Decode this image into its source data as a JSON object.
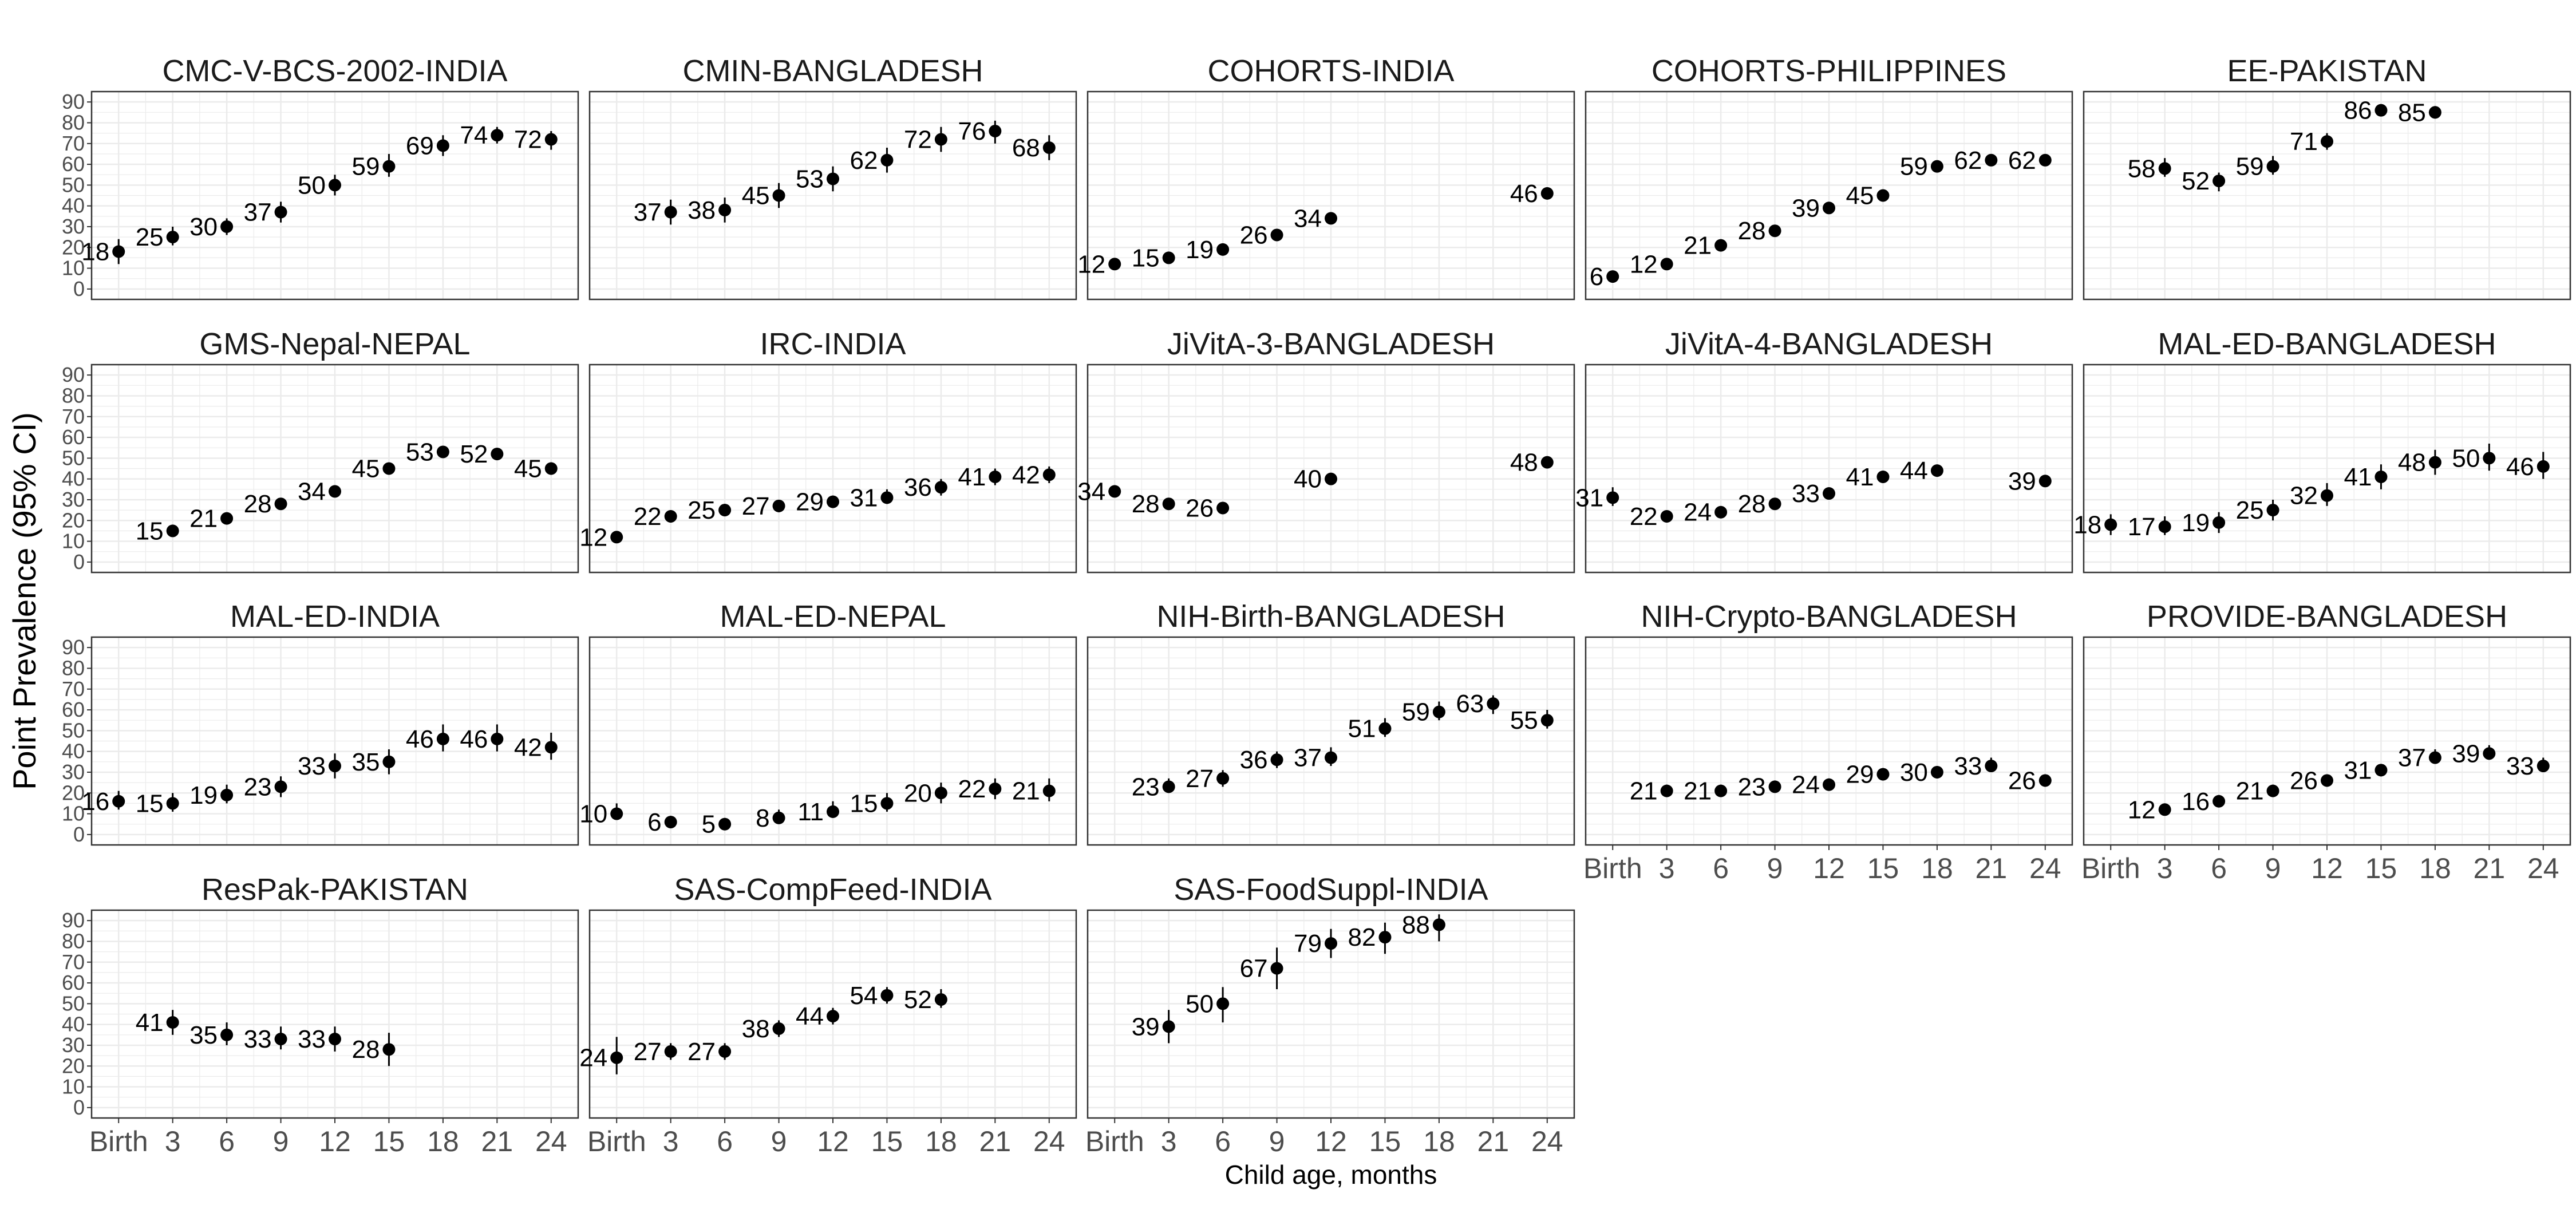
{
  "chart_data": {
    "type": "scatter",
    "xlabel": "Child age, months",
    "ylabel": "Point Prevalence (95% CI)",
    "ylim": [
      0,
      95
    ],
    "y_ticks": [
      0,
      10,
      20,
      30,
      40,
      50,
      60,
      70,
      80,
      90
    ],
    "x_ticks": [
      0,
      3,
      6,
      9,
      12,
      15,
      18,
      21,
      24
    ],
    "x_tick_labels": [
      "Birth",
      "3",
      "6",
      "9",
      "12",
      "15",
      "18",
      "21",
      "24"
    ],
    "grid": true,
    "panels": [
      {
        "title": "CMC-V-BCS-2002-INDIA",
        "points": [
          {
            "x": 0,
            "y": 18,
            "lo": 12,
            "hi": 24
          },
          {
            "x": 3,
            "y": 25,
            "lo": 21,
            "hi": 30
          },
          {
            "x": 6,
            "y": 30,
            "lo": 26,
            "hi": 34
          },
          {
            "x": 9,
            "y": 37,
            "lo": 32,
            "hi": 42
          },
          {
            "x": 12,
            "y": 50,
            "lo": 45,
            "hi": 55
          },
          {
            "x": 15,
            "y": 59,
            "lo": 54,
            "hi": 65
          },
          {
            "x": 18,
            "y": 69,
            "lo": 64,
            "hi": 74
          },
          {
            "x": 21,
            "y": 74,
            "lo": 70,
            "hi": 78
          },
          {
            "x": 24,
            "y": 72,
            "lo": 67,
            "hi": 76
          }
        ]
      },
      {
        "title": "CMIN-BANGLADESH",
        "points": [
          {
            "x": 3,
            "y": 37,
            "lo": 31,
            "hi": 43
          },
          {
            "x": 6,
            "y": 38,
            "lo": 32,
            "hi": 44
          },
          {
            "x": 9,
            "y": 45,
            "lo": 39,
            "hi": 51
          },
          {
            "x": 12,
            "y": 53,
            "lo": 47,
            "hi": 59
          },
          {
            "x": 15,
            "y": 62,
            "lo": 56,
            "hi": 68
          },
          {
            "x": 18,
            "y": 72,
            "lo": 66,
            "hi": 78
          },
          {
            "x": 21,
            "y": 76,
            "lo": 70,
            "hi": 81
          },
          {
            "x": 24,
            "y": 68,
            "lo": 62,
            "hi": 74
          }
        ]
      },
      {
        "title": "COHORTS-INDIA",
        "points": [
          {
            "x": 0,
            "y": 12,
            "lo": 11,
            "hi": 13
          },
          {
            "x": 3,
            "y": 15,
            "lo": 14,
            "hi": 16
          },
          {
            "x": 6,
            "y": 19,
            "lo": 18,
            "hi": 20
          },
          {
            "x": 9,
            "y": 26,
            "lo": 25,
            "hi": 27
          },
          {
            "x": 12,
            "y": 34,
            "lo": 33,
            "hi": 35
          },
          {
            "x": 24,
            "y": 46,
            "lo": 45,
            "hi": 47
          }
        ]
      },
      {
        "title": "COHORTS-PHILIPPINES",
        "points": [
          {
            "x": 0,
            "y": 6,
            "lo": 5,
            "hi": 7
          },
          {
            "x": 3,
            "y": 12,
            "lo": 11,
            "hi": 13
          },
          {
            "x": 6,
            "y": 21,
            "lo": 20,
            "hi": 22
          },
          {
            "x": 9,
            "y": 28,
            "lo": 27,
            "hi": 29
          },
          {
            "x": 12,
            "y": 39,
            "lo": 38,
            "hi": 40
          },
          {
            "x": 15,
            "y": 45,
            "lo": 44,
            "hi": 46
          },
          {
            "x": 18,
            "y": 59,
            "lo": 58,
            "hi": 60
          },
          {
            "x": 21,
            "y": 62,
            "lo": 61,
            "hi": 63
          },
          {
            "x": 24,
            "y": 62,
            "lo": 61,
            "hi": 63
          }
        ]
      },
      {
        "title": "EE-PAKISTAN",
        "points": [
          {
            "x": 3,
            "y": 58,
            "lo": 54,
            "hi": 63
          },
          {
            "x": 6,
            "y": 52,
            "lo": 47,
            "hi": 56
          },
          {
            "x": 9,
            "y": 59,
            "lo": 55,
            "hi": 64
          },
          {
            "x": 12,
            "y": 71,
            "lo": 67,
            "hi": 75
          },
          {
            "x": 15,
            "y": 86,
            "lo": 84,
            "hi": 88
          },
          {
            "x": 18,
            "y": 85,
            "lo": 82,
            "hi": 88
          }
        ]
      },
      {
        "title": "GMS-Nepal-NEPAL",
        "points": [
          {
            "x": 3,
            "y": 15,
            "lo": 13,
            "hi": 17
          },
          {
            "x": 6,
            "y": 21,
            "lo": 19,
            "hi": 23
          },
          {
            "x": 9,
            "y": 28,
            "lo": 26,
            "hi": 30
          },
          {
            "x": 12,
            "y": 34,
            "lo": 32,
            "hi": 36
          },
          {
            "x": 15,
            "y": 45,
            "lo": 43,
            "hi": 47
          },
          {
            "x": 18,
            "y": 53,
            "lo": 51,
            "hi": 55
          },
          {
            "x": 21,
            "y": 52,
            "lo": 49,
            "hi": 55
          },
          {
            "x": 24,
            "y": 45,
            "lo": 42,
            "hi": 48
          }
        ]
      },
      {
        "title": "IRC-INDIA",
        "points": [
          {
            "x": 0,
            "y": 12,
            "lo": 10,
            "hi": 14
          },
          {
            "x": 3,
            "y": 22,
            "lo": 19,
            "hi": 25
          },
          {
            "x": 6,
            "y": 25,
            "lo": 22,
            "hi": 28
          },
          {
            "x": 9,
            "y": 27,
            "lo": 24,
            "hi": 30
          },
          {
            "x": 12,
            "y": 29,
            "lo": 26,
            "hi": 32
          },
          {
            "x": 15,
            "y": 31,
            "lo": 28,
            "hi": 35
          },
          {
            "x": 18,
            "y": 36,
            "lo": 32,
            "hi": 40
          },
          {
            "x": 21,
            "y": 41,
            "lo": 37,
            "hi": 45
          },
          {
            "x": 24,
            "y": 42,
            "lo": 38,
            "hi": 46
          }
        ]
      },
      {
        "title": "JiVitA-3-BANGLADESH",
        "points": [
          {
            "x": 0,
            "y": 34,
            "lo": 33,
            "hi": 35
          },
          {
            "x": 3,
            "y": 28,
            "lo": 27,
            "hi": 29
          },
          {
            "x": 6,
            "y": 26,
            "lo": 25,
            "hi": 27
          },
          {
            "x": 12,
            "y": 40,
            "lo": 39,
            "hi": 41
          },
          {
            "x": 24,
            "y": 48,
            "lo": 47,
            "hi": 49
          }
        ]
      },
      {
        "title": "JiVitA-4-BANGLADESH",
        "points": [
          {
            "x": 0,
            "y": 31,
            "lo": 27,
            "hi": 36
          },
          {
            "x": 3,
            "y": 22,
            "lo": 21,
            "hi": 23
          },
          {
            "x": 6,
            "y": 24,
            "lo": 23,
            "hi": 25
          },
          {
            "x": 9,
            "y": 28,
            "lo": 27,
            "hi": 29
          },
          {
            "x": 12,
            "y": 33,
            "lo": 32,
            "hi": 34
          },
          {
            "x": 15,
            "y": 41,
            "lo": 40,
            "hi": 42
          },
          {
            "x": 18,
            "y": 44,
            "lo": 43,
            "hi": 45
          },
          {
            "x": 24,
            "y": 39,
            "lo": 38,
            "hi": 40
          }
        ]
      },
      {
        "title": "MAL-ED-BANGLADESH",
        "points": [
          {
            "x": 0,
            "y": 18,
            "lo": 13,
            "hi": 23
          },
          {
            "x": 3,
            "y": 17,
            "lo": 13,
            "hi": 22
          },
          {
            "x": 6,
            "y": 19,
            "lo": 14,
            "hi": 24
          },
          {
            "x": 9,
            "y": 25,
            "lo": 20,
            "hi": 30
          },
          {
            "x": 12,
            "y": 32,
            "lo": 27,
            "hi": 38
          },
          {
            "x": 15,
            "y": 41,
            "lo": 35,
            "hi": 47
          },
          {
            "x": 18,
            "y": 48,
            "lo": 42,
            "hi": 54
          },
          {
            "x": 21,
            "y": 50,
            "lo": 44,
            "hi": 57
          },
          {
            "x": 24,
            "y": 46,
            "lo": 40,
            "hi": 53
          }
        ]
      },
      {
        "title": "MAL-ED-INDIA",
        "points": [
          {
            "x": 0,
            "y": 16,
            "lo": 12,
            "hi": 21
          },
          {
            "x": 3,
            "y": 15,
            "lo": 11,
            "hi": 20
          },
          {
            "x": 6,
            "y": 19,
            "lo": 15,
            "hi": 24
          },
          {
            "x": 9,
            "y": 23,
            "lo": 18,
            "hi": 28
          },
          {
            "x": 12,
            "y": 33,
            "lo": 27,
            "hi": 39
          },
          {
            "x": 15,
            "y": 35,
            "lo": 29,
            "hi": 41
          },
          {
            "x": 18,
            "y": 46,
            "lo": 40,
            "hi": 53
          },
          {
            "x": 21,
            "y": 46,
            "lo": 40,
            "hi": 53
          },
          {
            "x": 24,
            "y": 42,
            "lo": 36,
            "hi": 49
          }
        ]
      },
      {
        "title": "MAL-ED-NEPAL",
        "points": [
          {
            "x": 0,
            "y": 10,
            "lo": 7,
            "hi": 15
          },
          {
            "x": 3,
            "y": 6,
            "lo": 4,
            "hi": 9
          },
          {
            "x": 6,
            "y": 5,
            "lo": 3,
            "hi": 8
          },
          {
            "x": 9,
            "y": 8,
            "lo": 5,
            "hi": 12
          },
          {
            "x": 12,
            "y": 11,
            "lo": 8,
            "hi": 16
          },
          {
            "x": 15,
            "y": 15,
            "lo": 11,
            "hi": 20
          },
          {
            "x": 18,
            "y": 20,
            "lo": 15,
            "hi": 25
          },
          {
            "x": 21,
            "y": 22,
            "lo": 17,
            "hi": 27
          },
          {
            "x": 24,
            "y": 21,
            "lo": 16,
            "hi": 27
          }
        ]
      },
      {
        "title": "NIH-Birth-BANGLADESH",
        "points": [
          {
            "x": 3,
            "y": 23,
            "lo": 20,
            "hi": 27
          },
          {
            "x": 6,
            "y": 27,
            "lo": 23,
            "hi": 31
          },
          {
            "x": 9,
            "y": 36,
            "lo": 32,
            "hi": 40
          },
          {
            "x": 12,
            "y": 37,
            "lo": 33,
            "hi": 42
          },
          {
            "x": 15,
            "y": 51,
            "lo": 47,
            "hi": 56
          },
          {
            "x": 18,
            "y": 59,
            "lo": 55,
            "hi": 64
          },
          {
            "x": 21,
            "y": 63,
            "lo": 58,
            "hi": 67
          },
          {
            "x": 24,
            "y": 55,
            "lo": 51,
            "hi": 60
          }
        ]
      },
      {
        "title": "NIH-Crypto-BANGLADESH",
        "points": [
          {
            "x": 3,
            "y": 21,
            "lo": 19,
            "hi": 24
          },
          {
            "x": 6,
            "y": 21,
            "lo": 19,
            "hi": 24
          },
          {
            "x": 9,
            "y": 23,
            "lo": 21,
            "hi": 26
          },
          {
            "x": 12,
            "y": 24,
            "lo": 22,
            "hi": 27
          },
          {
            "x": 15,
            "y": 29,
            "lo": 26,
            "hi": 32
          },
          {
            "x": 18,
            "y": 30,
            "lo": 27,
            "hi": 33
          },
          {
            "x": 21,
            "y": 33,
            "lo": 30,
            "hi": 37
          },
          {
            "x": 24,
            "y": 26,
            "lo": 23,
            "hi": 29
          }
        ]
      },
      {
        "title": "PROVIDE-BANGLADESH",
        "points": [
          {
            "x": 3,
            "y": 12,
            "lo": 10,
            "hi": 15
          },
          {
            "x": 6,
            "y": 16,
            "lo": 14,
            "hi": 19
          },
          {
            "x": 9,
            "y": 21,
            "lo": 18,
            "hi": 24
          },
          {
            "x": 12,
            "y": 26,
            "lo": 23,
            "hi": 29
          },
          {
            "x": 15,
            "y": 31,
            "lo": 28,
            "hi": 34
          },
          {
            "x": 18,
            "y": 37,
            "lo": 34,
            "hi": 41
          },
          {
            "x": 21,
            "y": 39,
            "lo": 36,
            "hi": 43
          },
          {
            "x": 24,
            "y": 33,
            "lo": 30,
            "hi": 37
          }
        ]
      },
      {
        "title": "ResPak-PAKISTAN",
        "points": [
          {
            "x": 3,
            "y": 41,
            "lo": 35,
            "hi": 47
          },
          {
            "x": 6,
            "y": 35,
            "lo": 30,
            "hi": 41
          },
          {
            "x": 9,
            "y": 33,
            "lo": 28,
            "hi": 39
          },
          {
            "x": 12,
            "y": 33,
            "lo": 27,
            "hi": 39
          },
          {
            "x": 15,
            "y": 28,
            "lo": 20,
            "hi": 36
          }
        ]
      },
      {
        "title": "SAS-CompFeed-INDIA",
        "points": [
          {
            "x": 0,
            "y": 24,
            "lo": 16,
            "hi": 34
          },
          {
            "x": 3,
            "y": 27,
            "lo": 23,
            "hi": 31
          },
          {
            "x": 6,
            "y": 27,
            "lo": 23,
            "hi": 31
          },
          {
            "x": 9,
            "y": 38,
            "lo": 34,
            "hi": 42
          },
          {
            "x": 12,
            "y": 44,
            "lo": 40,
            "hi": 48
          },
          {
            "x": 15,
            "y": 54,
            "lo": 50,
            "hi": 58
          },
          {
            "x": 18,
            "y": 52,
            "lo": 48,
            "hi": 57
          }
        ]
      },
      {
        "title": "SAS-FoodSuppl-INDIA",
        "points": [
          {
            "x": 3,
            "y": 39,
            "lo": 31,
            "hi": 47
          },
          {
            "x": 6,
            "y": 50,
            "lo": 41,
            "hi": 58
          },
          {
            "x": 9,
            "y": 67,
            "lo": 57,
            "hi": 77
          },
          {
            "x": 12,
            "y": 79,
            "lo": 72,
            "hi": 86
          },
          {
            "x": 15,
            "y": 82,
            "lo": 74,
            "hi": 89
          },
          {
            "x": 18,
            "y": 88,
            "lo": 80,
            "hi": 93
          }
        ]
      }
    ],
    "label_values": [
      [
        "18",
        "25",
        "30",
        "37",
        "50",
        "59",
        "69",
        "74",
        "72"
      ],
      [
        "37",
        "38",
        "45",
        "53",
        "62",
        "72",
        "76",
        "68"
      ],
      [
        "12",
        "15",
        "19",
        "26",
        "34",
        "46"
      ],
      [
        "6",
        "12",
        "21",
        "28",
        "39",
        "45",
        "59",
        "62",
        "62"
      ],
      [
        "58",
        "52",
        "59",
        "71",
        "86",
        "85"
      ],
      [
        "15",
        "21",
        "28",
        "34",
        "45",
        "53",
        "52",
        "45"
      ],
      [
        "12",
        "22",
        "25",
        "27",
        "29",
        "31",
        "36",
        "41",
        "42"
      ],
      [
        "34",
        "28",
        "26",
        "40",
        "48"
      ],
      [
        "31",
        "22",
        "24",
        "28",
        "33",
        "41",
        "44",
        "39"
      ],
      [
        "18",
        "17",
        "19",
        "25",
        "32",
        "41",
        "48",
        "50",
        "46"
      ],
      [
        "16",
        "15",
        "19",
        "23",
        "33",
        "35",
        "46",
        "46",
        "42"
      ],
      [
        "10",
        "6",
        "5",
        "8",
        "11",
        "15",
        "20",
        "22",
        "21"
      ],
      [
        "23",
        "27",
        "36",
        "37",
        "51",
        "59",
        "63",
        "55"
      ],
      [
        "21",
        "21",
        "23",
        "24",
        "29",
        "30",
        "33",
        "26"
      ],
      [
        "12",
        "16",
        "21",
        "26",
        "31",
        "37",
        "39",
        "33"
      ],
      [
        "41",
        "35",
        "33",
        "33",
        "28"
      ],
      [
        "24",
        "27",
        "27",
        "38",
        "44",
        "54",
        "52"
      ],
      [
        "39",
        "50",
        "67",
        "79",
        "82",
        "88"
      ]
    ],
    "x_axis_shown_on": [
      "NIH-Crypto-BANGLADESH",
      "PROVIDE-BANGLADESH",
      "ResPak-PAKISTAN",
      "SAS-CompFeed-INDIA",
      "SAS-FoodSuppl-INDIA"
    ],
    "y_axis_shown_on": [
      "CMC-V-BCS-2002-INDIA",
      "GMS-Nepal-NEPAL",
      "MAL-ED-INDIA",
      "ResPak-PAKISTAN"
    ],
    "colors": {
      "point": "#000000",
      "grid": "#ebebeb",
      "panel_border": "#333333",
      "tick_text": "#4d4d4d"
    }
  }
}
